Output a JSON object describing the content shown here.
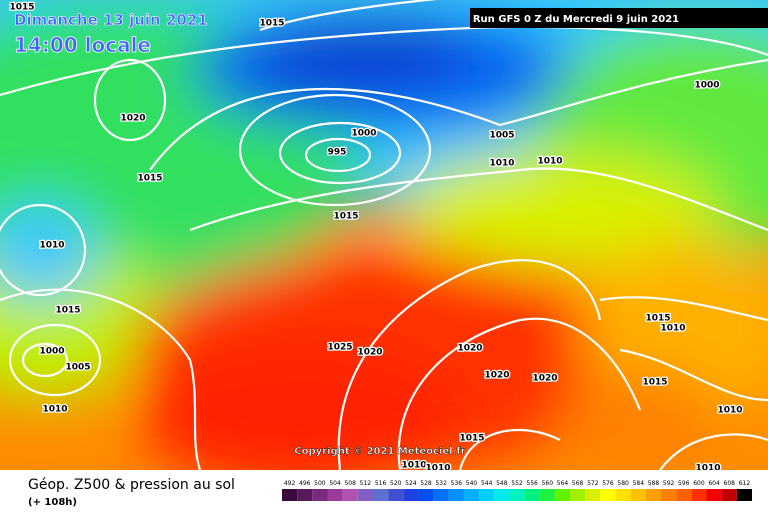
{
  "header": {
    "date": "Dimanche 13 juin 2021",
    "time": "14:00 locale",
    "run": "Run GFS 0 Z du Mercredi 9 juin 2021"
  },
  "isobar_labels": [
    1015,
    1015,
    1020,
    1015,
    1000,
    995,
    1005,
    1010,
    1010,
    1000,
    1015,
    1010,
    1015,
    1000,
    1005,
    1010,
    1025,
    1020,
    1020,
    1020,
    1020,
    1015,
    1010,
    1015,
    1010,
    1015,
    1010,
    1010,
    1010
  ],
  "copyright": "Copyright © 2021 Meteociel.fr",
  "footer": {
    "title": "Géop. Z500 & pression au sol",
    "lead": "(+ 108h)"
  },
  "scale": {
    "values": [
      492,
      496,
      500,
      504,
      508,
      512,
      516,
      520,
      524,
      528,
      532,
      536,
      540,
      544,
      548,
      552,
      556,
      560,
      564,
      568,
      572,
      576,
      580,
      584,
      588,
      592,
      596,
      600,
      604,
      608,
      612
    ],
    "colors": [
      "#3a0a3a",
      "#5a1a5a",
      "#7a2a7a",
      "#9a3a9a",
      "#b050b0",
      "#8060c0",
      "#6070d0",
      "#4050d0",
      "#2040e0",
      "#0050f0",
      "#0070ff",
      "#0090ff",
      "#00b0ff",
      "#00d0ff",
      "#00e8e8",
      "#00f0c0",
      "#00f080",
      "#20f040",
      "#60f000",
      "#a0f000",
      "#d8f000",
      "#ffff00",
      "#ffe000",
      "#ffc000",
      "#ffa000",
      "#ff8000",
      "#ff6000",
      "#ff3000",
      "#f00000",
      "#c00000",
      "#000000"
    ]
  }
}
